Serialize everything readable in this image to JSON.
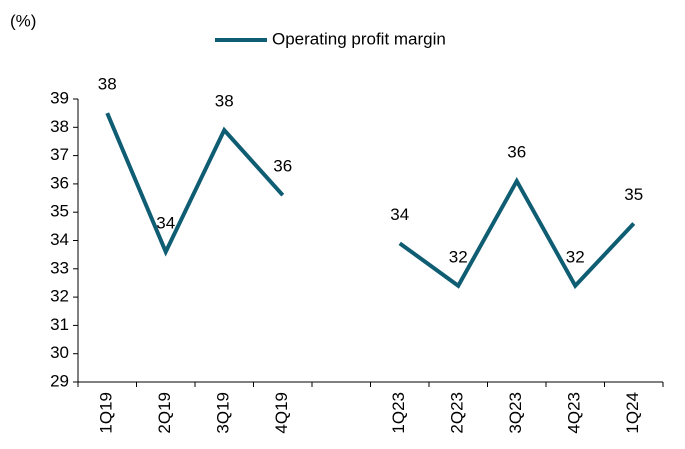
{
  "chart_data": {
    "type": "line",
    "y_label": "(%)",
    "categories": [
      "1Q19",
      "2Q19",
      "3Q19",
      "4Q19",
      null,
      "1Q23",
      "2Q23",
      "3Q23",
      "4Q23",
      "1Q24"
    ],
    "series": [
      {
        "name": "Operating profit margin",
        "color": "#0f5d73",
        "values": [
          38.5,
          33.6,
          37.9,
          35.6,
          null,
          33.9,
          32.4,
          36.1,
          32.4,
          34.6
        ],
        "value_labels": [
          "38",
          "34",
          "38",
          "36",
          null,
          "34",
          "32",
          "36",
          "32",
          "35"
        ]
      }
    ],
    "ylim": [
      29,
      39
    ],
    "yticks": [
      29,
      30,
      31,
      32,
      33,
      34,
      35,
      36,
      37,
      38,
      39
    ],
    "grid": false,
    "legend": "top"
  }
}
